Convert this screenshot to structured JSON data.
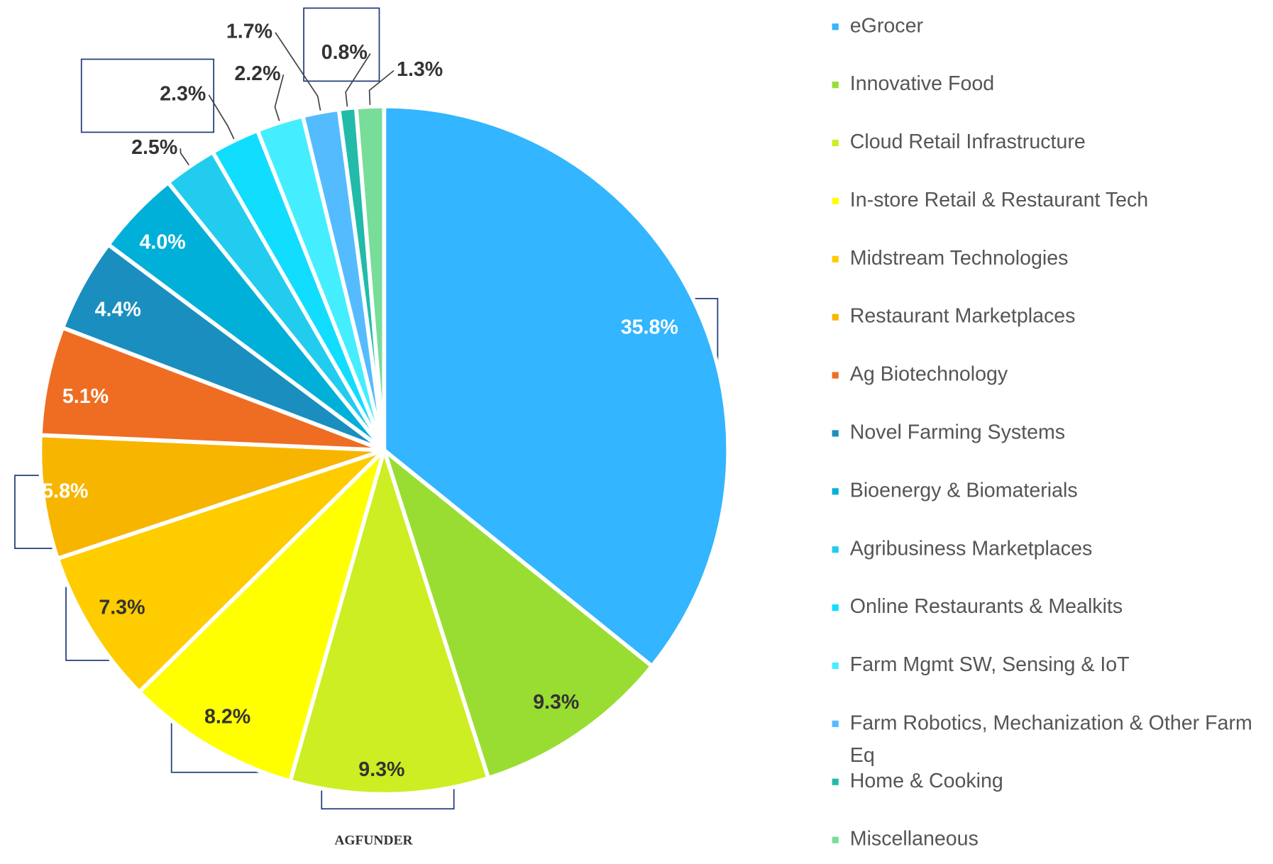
{
  "chart_data": {
    "type": "pie",
    "categories": [
      "eGrocer",
      "Innovative Food",
      "Cloud Retail Infrastructure",
      "In-store Retail & Restaurant Tech",
      "Midstream Technologies",
      "Restaurant Marketplaces",
      "Ag Biotechnology",
      "Novel Farming Systems",
      "Bioenergy & Biomaterials",
      "Agribusiness Marketplaces",
      "Online Restaurants & Mealkits",
      "Farm Mgmt SW, Sensing & IoT",
      "Farm Robotics, Mechanization & Other Farm Eq",
      "Home & Cooking",
      "Miscellaneous"
    ],
    "values": [
      35.8,
      9.3,
      9.3,
      8.2,
      7.3,
      5.8,
      5.1,
      4.4,
      4.0,
      2.5,
      2.3,
      2.2,
      1.7,
      0.8,
      1.3
    ],
    "value_labels": [
      "35.8%",
      "9.3%",
      "9.3%",
      "8.2%",
      "7.3%",
      "5.8%",
      "5.1%",
      "4.4%",
      "4.0%",
      "2.5%",
      "2.3%",
      "2.2%",
      "1.7%",
      "0.8%",
      "1.3%"
    ],
    "colors": [
      "#33b5ff",
      "#99dd33",
      "#ccee22",
      "#ffff00",
      "#ffcc00",
      "#f8b500",
      "#ee6d22",
      "#1a8fbf",
      "#00b0d8",
      "#22ccee",
      "#11ddff",
      "#44eeff",
      "#55bbff",
      "#22bbaa",
      "#77dd99"
    ],
    "legend": "right",
    "logo": "AGFUNDER"
  }
}
